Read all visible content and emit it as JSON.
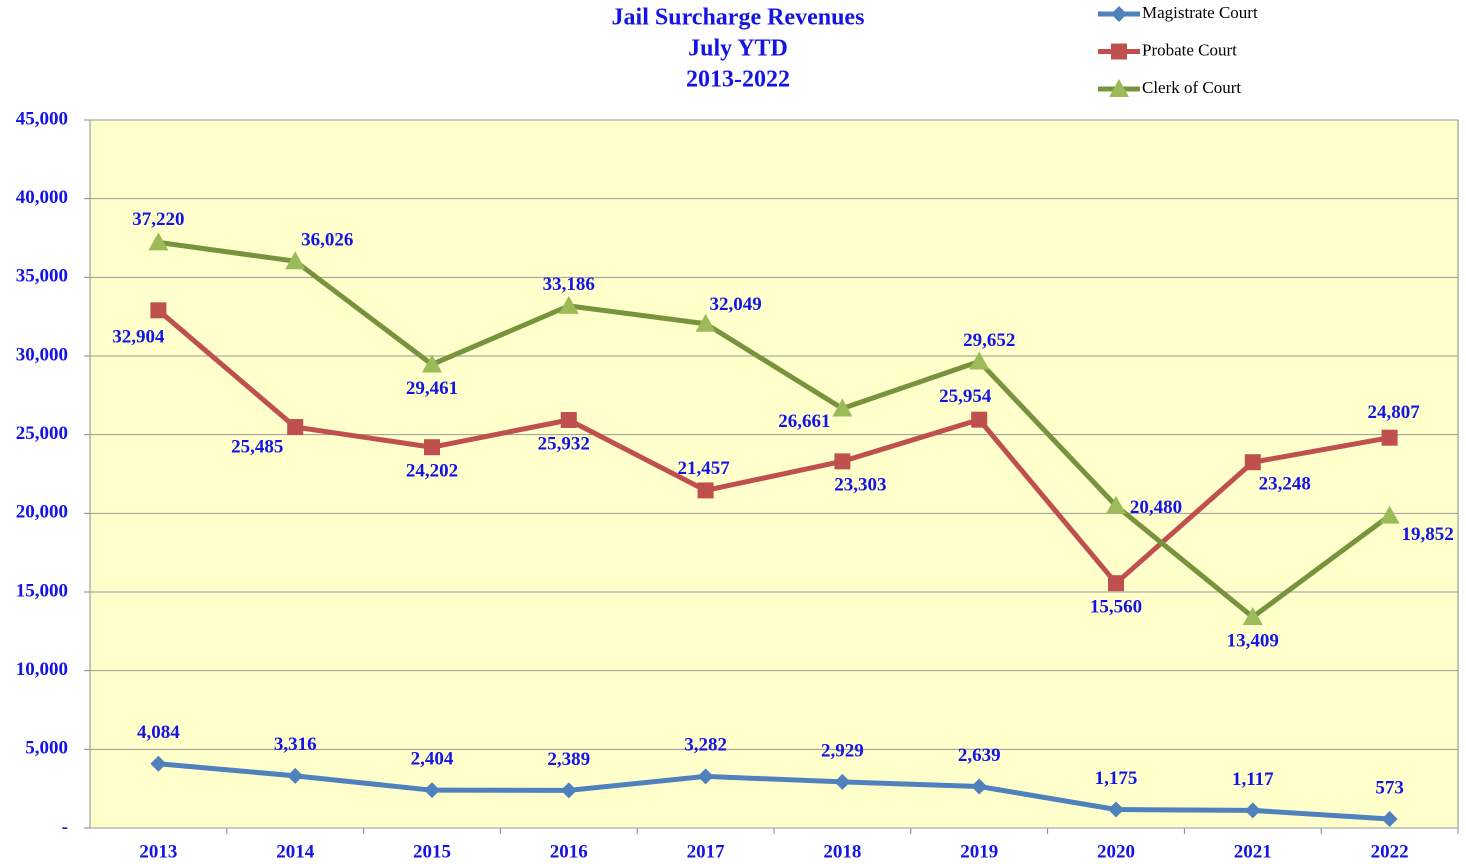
{
  "chart_data": {
    "type": "line",
    "title": [
      "Jail Surcharge Revenues",
      "July YTD",
      "2013-2022"
    ],
    "categories": [
      "2013",
      "2014",
      "2015",
      "2016",
      "2017",
      "2018",
      "2019",
      "2020",
      "2021",
      "2022"
    ],
    "series": [
      {
        "name": "Magistrate Court",
        "color": "#4f81bd",
        "marker": "diamond",
        "values": [
          4084,
          3316,
          2404,
          2389,
          3282,
          2929,
          2639,
          1175,
          1117,
          573
        ],
        "value_labels": [
          "4,084",
          "3,316",
          "2,404",
          "2,389",
          "3,282",
          "2,929",
          "2,639",
          "1,175",
          "1,117",
          "573"
        ]
      },
      {
        "name": "Probate Court",
        "color": "#c0504d",
        "marker": "square",
        "values": [
          32904,
          25485,
          24202,
          25932,
          21457,
          23303,
          25954,
          15560,
          23248,
          24807
        ],
        "value_labels": [
          "32,904",
          "25,485",
          "24,202",
          "25,932",
          "21,457",
          "23,303",
          "25,954",
          "15,560",
          "23,248",
          "24,807"
        ]
      },
      {
        "name": "Clerk of Court",
        "color": "#77933c",
        "marker_color": "#9bbb59",
        "marker": "triangle",
        "values": [
          37220,
          36026,
          29461,
          33186,
          32049,
          26661,
          29652,
          20480,
          13409,
          19852
        ],
        "value_labels": [
          "37,220",
          "36,026",
          "29,461",
          "33,186",
          "32,049",
          "26,661",
          "29,652",
          "20,480",
          "13,409",
          "19,852"
        ]
      }
    ],
    "ylim": [
      0,
      45000
    ],
    "yticks": [
      {
        "value": 0,
        "label": "-"
      },
      {
        "value": 5000,
        "label": "5,000"
      },
      {
        "value": 10000,
        "label": "10,000"
      },
      {
        "value": 15000,
        "label": "15,000"
      },
      {
        "value": 20000,
        "label": "20,000"
      },
      {
        "value": 25000,
        "label": "25,000"
      },
      {
        "value": 30000,
        "label": "30,000"
      },
      {
        "value": 35000,
        "label": "35,000"
      },
      {
        "value": 40000,
        "label": "40,000"
      },
      {
        "value": 45000,
        "label": "45,000"
      }
    ],
    "grid": true,
    "legend": "top-right",
    "plot_background": "#ffffcc",
    "label_color": "#1414e6"
  }
}
